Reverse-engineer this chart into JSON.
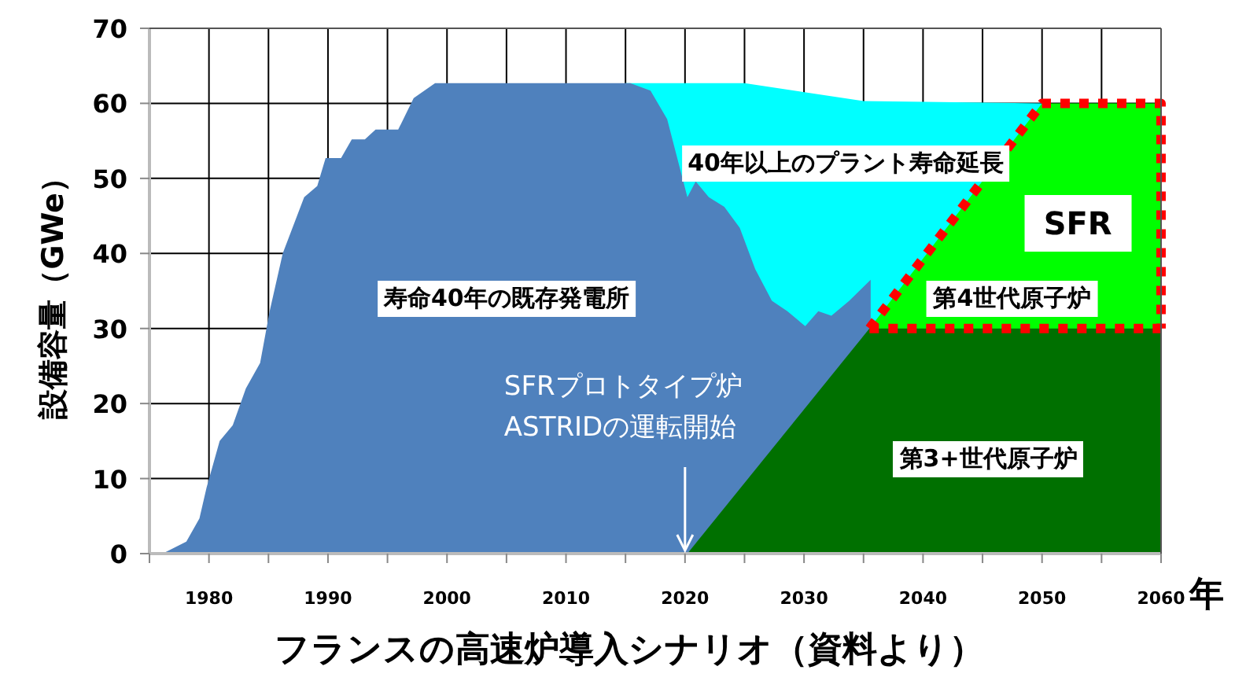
{
  "chart_data": {
    "type": "area",
    "title": "フランスの高速炉導入シナリオ（資料より）",
    "xlabel": "年",
    "ylabel": "設備容量（GWe）",
    "xlim": [
      1975,
      2060
    ],
    "ylim": [
      0,
      70
    ],
    "xticks": [
      {
        "value": 1975,
        "label": null
      },
      1980,
      {
        "value": 1985,
        "label": null
      },
      1990,
      {
        "value": 1995,
        "label": null
      },
      2000,
      {
        "value": 2005,
        "label": null
      },
      2010,
      {
        "value": 2015,
        "label": null
      },
      2020,
      {
        "value": 2025,
        "label": null
      },
      2030,
      {
        "value": 2035,
        "label": null
      },
      2040,
      {
        "value": 2045,
        "label": null
      },
      2050,
      {
        "value": 2055,
        "label": null
      },
      2060
    ],
    "yticks": [
      0,
      10,
      20,
      30,
      40,
      50,
      60,
      70
    ],
    "grid": true,
    "legend": false,
    "series": [
      {
        "name": "40年以上のプラント寿命延長",
        "color": "#00ffff",
        "x": [
          2015,
          2025,
          2035,
          2050
        ],
        "values": [
          62.7,
          62.7,
          60.3,
          60
        ]
      },
      {
        "name": "寿命40年の既存発電所",
        "color": "#4f81bd",
        "x": [
          1976.1,
          1978.1,
          1979.2,
          1979.8,
          1980.9,
          1982.0,
          1983.1,
          1984.3,
          1985.1,
          1986.2,
          1988.0,
          1989.1,
          1989.8,
          1991.1,
          1992.0,
          1993.1,
          1994.0,
          1995.9,
          1997.2,
          1999.0,
          2015.4,
          2017.1,
          2018.5,
          2019.3,
          2020.2,
          2020.9,
          2022.0,
          2023.3,
          2024.6,
          2025.9,
          2027.3,
          2028.6,
          2030.1,
          2031.2,
          2032.3,
          2033.8,
          2035.6
        ],
        "values": [
          0,
          1.6,
          4.7,
          8.8,
          15,
          17.1,
          22,
          25.4,
          32.3,
          40,
          47.5,
          49,
          52.7,
          52.7,
          55.2,
          55.2,
          56.5,
          56.5,
          60.7,
          62.7,
          62.7,
          61.7,
          57.9,
          53,
          47.5,
          49.6,
          47.5,
          46.2,
          43.4,
          37.9,
          33.7,
          32.3,
          30.3,
          32.3,
          31.7,
          33.7,
          36.5
        ]
      },
      {
        "name": "第4世代原子炉",
        "color": "#00ff00",
        "x": [
          2035.5,
          2050,
          2060
        ],
        "values": [
          30,
          60,
          60
        ]
      },
      {
        "name": "第3+世代原子炉",
        "color": "#007000",
        "x": [
          2020.2,
          2035.5,
          2060
        ],
        "values": [
          0,
          30,
          30
        ]
      },
      {
        "type": "line",
        "color": "#ff0000",
        "line_style": "dotted",
        "marker": "none",
        "x": [
          2035.5,
          2050,
          2060,
          2060
        ],
        "values": [
          30,
          60,
          60,
          30
        ]
      },
      {
        "type": "line",
        "color": "#ff0000",
        "line_style": "dotted",
        "marker": "none",
        "x": [
          2035.5,
          2060
        ],
        "values": [
          30,
          30
        ]
      }
    ],
    "annotations": [
      "SFR",
      {
        "text": "SFRプロトタイプ炉ASTRIDの運転開始",
        "x": 2020,
        "y": 0
      }
    ]
  }
}
